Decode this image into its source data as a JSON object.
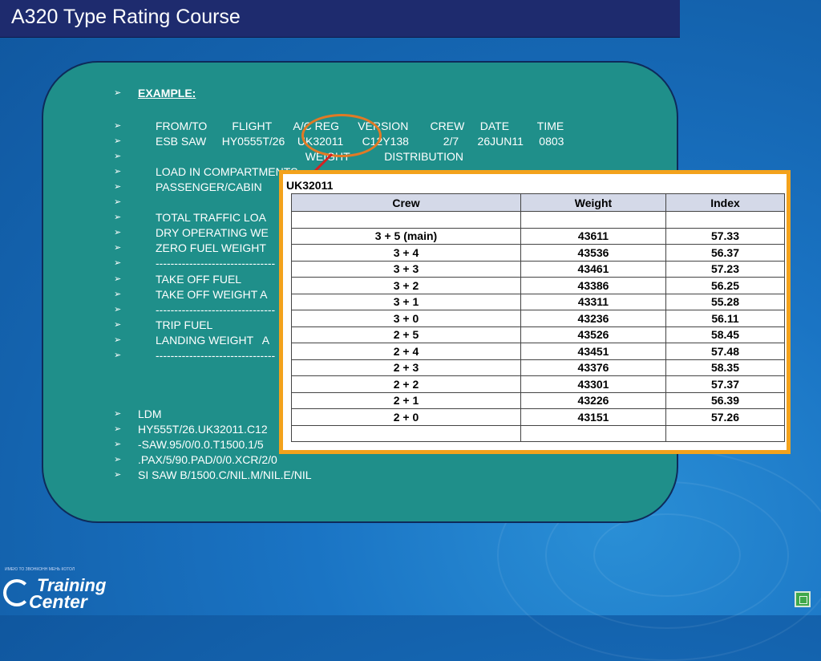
{
  "title": "A320 Type Rating Course",
  "bullet_glyph": "➢",
  "lines": [
    {
      "text": "EXAMPLE:",
      "style": "bold-u"
    },
    {
      "text": "FROM/TO        FLIGHT       A/C REG      VERSION       CREW     DATE         TIME",
      "style": "indent"
    },
    {
      "text": "ESB SAW     HY0555T/26    UK32011      C12Y138           2/7      26JUN11     0803",
      "style": "indent"
    },
    {
      "text": "                                                WEIGHT           DISTRIBUTION",
      "style": "indent"
    },
    {
      "text": "LOAD IN COMPARTMENTS",
      "style": "indent"
    },
    {
      "text": "PASSENGER/CABIN",
      "style": "indent"
    },
    {
      "text": "",
      "style": "indent"
    },
    {
      "text": "TOTAL TRAFFIC LOA",
      "style": "indent"
    },
    {
      "text": "DRY OPERATING WE",
      "style": "indent"
    },
    {
      "text": "ZERO FUEL WEIGHT",
      "style": "indent"
    },
    {
      "text": "--------------------------------",
      "style": "indent"
    },
    {
      "text": "TAKE OFF FUEL",
      "style": "indent"
    },
    {
      "text": "TAKE OFF WEIGHT A",
      "style": "indent"
    },
    {
      "text": "--------------------------------",
      "style": "indent"
    },
    {
      "text": "TRIP FUEL",
      "style": "indent"
    },
    {
      "text": "LANDING WEIGHT   A",
      "style": "indent"
    },
    {
      "text": "--------------------------------",
      "style": "indent"
    }
  ],
  "ldm_lines": [
    "LDM",
    "HY555T/26.UK32011.C12",
    "-SAW.95/0/0.0.T1500.1/5",
    ".PAX/5/90.PAD/0/0.XCR/2/0",
    "SI SAW B/1500.C/NIL.M/NIL.E/NIL"
  ],
  "table": {
    "label": "UK32011",
    "headers": [
      "Crew",
      "Weight",
      "Index"
    ],
    "rows": [
      [
        "",
        "",
        ""
      ],
      [
        "3 + 5 (main)",
        "43611",
        "57.33"
      ],
      [
        "3 + 4",
        "43536",
        "56.37"
      ],
      [
        "3 + 3",
        "43461",
        "57.23"
      ],
      [
        "3 + 2",
        "43386",
        "56.25"
      ],
      [
        "3 + 1",
        "43311",
        "55.28"
      ],
      [
        "3 + 0",
        "43236",
        "56.11"
      ],
      [
        "2 + 5",
        "43526",
        "58.45"
      ],
      [
        "2 + 4",
        "43451",
        "57.48"
      ],
      [
        "2 + 3",
        "43376",
        "58.35"
      ],
      [
        "2 + 2",
        "43301",
        "57.37"
      ],
      [
        "2 + 1",
        "43226",
        "56.39"
      ],
      [
        "2 + 0",
        "43151",
        "57.26"
      ],
      [
        "",
        "",
        ""
      ]
    ]
  },
  "logo": {
    "line1": "Training",
    "line2": "Center",
    "fine_print": "ИМЕЮ ТО ЗВОНКОНН МЕНЬ КОТОЛ"
  },
  "colors": {
    "title_bar": "#1e2b6e",
    "panel": "#1f8f8a",
    "table_border": "#f3a21c",
    "highlight_circle": "#e07a25"
  }
}
